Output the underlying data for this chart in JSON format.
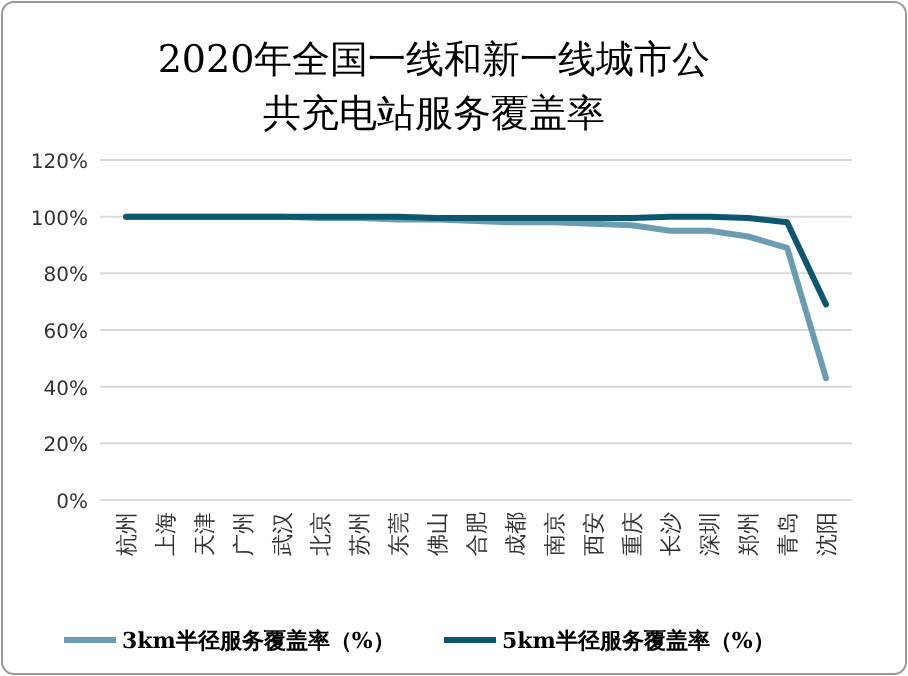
{
  "chart_data": {
    "type": "line",
    "title": "2020年全国一线和新一线城市公共充电站服务覆盖率",
    "categories": [
      "杭州",
      "上海",
      "天津",
      "广州",
      "武汉",
      "北京",
      "苏州",
      "东莞",
      "佛山",
      "合肥",
      "成都",
      "南京",
      "西安",
      "重庆",
      "长沙",
      "深圳",
      "郑州",
      "青岛",
      "沈阳"
    ],
    "series": [
      {
        "name": "3km半径服务覆盖率（%）",
        "color": "#6a9db2",
        "values": [
          100,
          100,
          100,
          100,
          100,
          99.5,
          99.5,
          99,
          99,
          98.5,
          98,
          98,
          97.5,
          97,
          95,
          95,
          93,
          89,
          43
        ]
      },
      {
        "name": "5km半径服务覆盖率（%）",
        "color": "#0d5670",
        "values": [
          100,
          100,
          100,
          100,
          100,
          100,
          100,
          100,
          99.5,
          99.5,
          99.5,
          99.5,
          99.5,
          99.5,
          100,
          100,
          99.5,
          98,
          69
        ]
      }
    ],
    "ylim": [
      0,
      120
    ],
    "yticks": [
      {
        "value": 0,
        "label": "0%"
      },
      {
        "value": 20,
        "label": "20%"
      },
      {
        "value": 40,
        "label": "40%"
      },
      {
        "value": 60,
        "label": "60%"
      },
      {
        "value": 80,
        "label": "80%"
      },
      {
        "value": 100,
        "label": "100%"
      },
      {
        "value": 120,
        "label": "120%"
      }
    ],
    "grid": "y",
    "legend": "bottom",
    "marker": "none",
    "line_style": "solid"
  }
}
